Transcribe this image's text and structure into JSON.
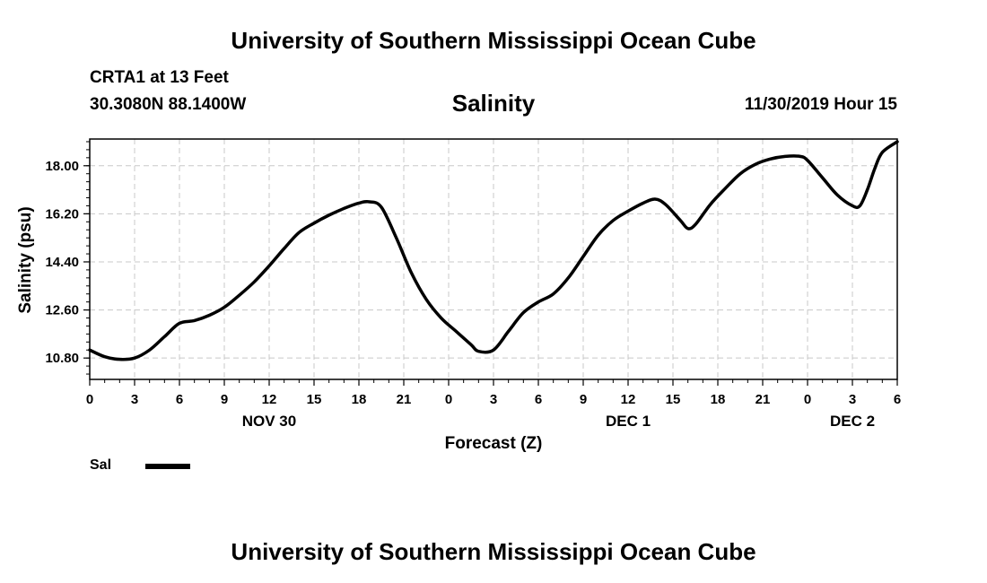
{
  "header": {
    "title_top": "University of Southern Mississippi Ocean Cube",
    "station": "CRTA1 at 13 Feet",
    "coords": "30.3080N 88.1400W",
    "run_time": "11/30/2019 Hour 15"
  },
  "footer": {
    "title_bottom": "University of Southern Mississippi Ocean Cube"
  },
  "legend": {
    "label": "Sal",
    "color": "#000000"
  },
  "chart_data": {
    "type": "line",
    "title": "Salinity",
    "xlabel": "Forecast (Z)",
    "ylabel": "Salinity (psu)",
    "xlim": [
      0,
      54
    ],
    "ylim": [
      10.0,
      19.0
    ],
    "grid": true,
    "x_ticks": [
      0,
      3,
      6,
      9,
      12,
      15,
      18,
      21,
      24,
      27,
      30,
      33,
      36,
      39,
      42,
      45,
      48,
      51,
      54
    ],
    "x_tick_labels": [
      "0",
      "3",
      "6",
      "9",
      "12",
      "15",
      "18",
      "21",
      "0",
      "3",
      "6",
      "9",
      "12",
      "15",
      "18",
      "21",
      "0",
      "3",
      "6"
    ],
    "y_ticks": [
      10.8,
      12.6,
      14.4,
      16.2,
      18.0
    ],
    "y_tick_labels": [
      "10.80",
      "12.60",
      "14.40",
      "16.20",
      "18.00"
    ],
    "day_labels": [
      {
        "x": 12,
        "label": "NOV 30"
      },
      {
        "x": 36,
        "label": "DEC 1"
      },
      {
        "x": 51,
        "label": "DEC 2"
      }
    ],
    "series": [
      {
        "name": "Sal",
        "color": "#000000",
        "x": [
          0,
          1,
          2,
          3,
          4,
          5,
          6,
          7,
          8,
          9,
          10,
          11,
          12,
          13,
          14,
          15,
          16,
          17,
          18,
          18.7,
          19.5,
          20.5,
          21.5,
          22.5,
          23.5,
          24.5,
          25.5,
          26,
          27,
          28,
          29,
          30,
          31,
          32,
          33,
          34,
          35,
          36,
          37,
          37.8,
          38.5,
          39.5,
          40,
          40.5,
          41.5,
          42.5,
          43.5,
          44.5,
          45.5,
          46.5,
          47.5,
          48,
          49,
          50,
          51,
          51.5,
          52,
          52.5,
          53,
          54
        ],
        "values": [
          11.1,
          10.85,
          10.75,
          10.8,
          11.1,
          11.6,
          12.1,
          12.2,
          12.4,
          12.7,
          13.15,
          13.65,
          14.25,
          14.9,
          15.5,
          15.85,
          16.15,
          16.4,
          16.6,
          16.65,
          16.45,
          15.3,
          14.0,
          13.0,
          12.3,
          11.8,
          11.3,
          11.05,
          11.1,
          11.8,
          12.5,
          12.9,
          13.2,
          13.8,
          14.6,
          15.4,
          15.95,
          16.3,
          16.6,
          16.75,
          16.55,
          15.95,
          15.65,
          15.8,
          16.55,
          17.15,
          17.7,
          18.05,
          18.25,
          18.35,
          18.35,
          18.2,
          17.55,
          16.9,
          16.5,
          16.5,
          17.1,
          17.9,
          18.5,
          18.9
        ]
      }
    ]
  }
}
